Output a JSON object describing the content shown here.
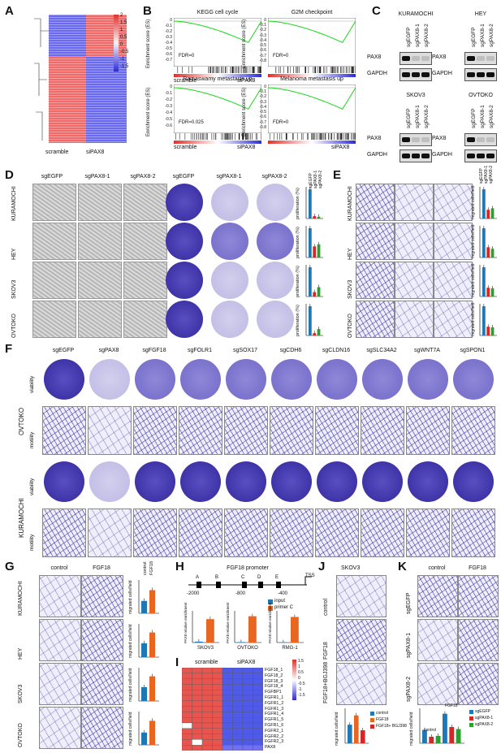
{
  "panels": {
    "A": {
      "label": "A",
      "heatmap_scale": [
        "2",
        "1.5",
        "1",
        "0.5",
        "0",
        "-0.5",
        "-1",
        "-1.5"
      ],
      "groups": [
        "scramble",
        "siPAX8"
      ]
    },
    "B": {
      "label": "B",
      "gsea": [
        {
          "title": "KEGG cell cycle",
          "fdr": "FDR=0",
          "left": "scramble",
          "right": "siPAX8",
          "yticks": [
            "0",
            "-0.1",
            "-0.2",
            "-0.3",
            "-0.4",
            "-0.5",
            "-0.6",
            "-0.7"
          ]
        },
        {
          "title": "G2M checkpoint",
          "fdr": "FDR=0",
          "left": "",
          "right": "",
          "yticks": [
            "0",
            "-0.1",
            "-0.2",
            "-0.3",
            "-0.4",
            "-0.5",
            "-0.6",
            "-0.7",
            "-0.8"
          ]
        },
        {
          "title": "Ramaswamy metastasis up",
          "fdr": "FDR=0.025",
          "left": "scramble",
          "right": "siPAX8",
          "yticks": [
            "0",
            "-0.1",
            "-0.2",
            "-0.3",
            "-0.4",
            "-0.5",
            "-0.6"
          ]
        },
        {
          "title": "Melanoma metastasis up",
          "fdr": "FDR=0",
          "left": "",
          "right": "siPAX8",
          "yticks": [
            "0",
            "-0.1",
            "-0.2",
            "-0.3",
            "-0.4",
            "-0.5",
            "-0.6",
            "-0.7",
            "-0.8"
          ]
        }
      ],
      "ylabel": "Enrichment score (ES)"
    },
    "C": {
      "label": "C",
      "blots": [
        {
          "cell": "KURAMOCHI",
          "lanes": [
            "sgEGFP",
            "sgPAX8-1",
            "sgPAX8-2"
          ],
          "rows": [
            "PAX8",
            "GAPDH"
          ]
        },
        {
          "cell": "HEY",
          "lanes": [
            "sgEGFP",
            "sgPAX8-1",
            "sgPAX8-2"
          ],
          "rows": [
            "PAX8",
            "GAPDH"
          ]
        },
        {
          "cell": "SKOV3",
          "lanes": [
            "sgEGFP",
            "sgPAX8-1",
            "sgPAX8-2"
          ],
          "rows": [
            "PAX8",
            "GAPDH"
          ]
        },
        {
          "cell": "OVTOKO",
          "lanes": [
            "sgEGFP",
            "sgPAX8-1",
            "sgPAX8-2"
          ],
          "rows": [
            "PAX8",
            "GAPDH"
          ]
        }
      ]
    },
    "D": {
      "label": "D",
      "cols": [
        "sgEGFP",
        "sgPAX8-1",
        "sgPAX8-2",
        "sgEGFP",
        "sgPAX8-1",
        "sgPAX8-2"
      ],
      "rows": [
        "KURAMOCHI",
        "HEY",
        "SKOV3",
        "OVTOKO"
      ],
      "legend": [
        "sgEGFP",
        "sgPAX8-1",
        "sgPAX8-2"
      ],
      "ylabel": "proliferation (%)"
    },
    "E": {
      "label": "E",
      "rows": [
        "KURAMOCHI",
        "HEY",
        "SKOV3",
        "OVTOKO"
      ],
      "legend": [
        "sgEGFP",
        "sgPAX8-1",
        "sgPAX8-2"
      ],
      "ylabel": "migrated cells/field"
    },
    "F": {
      "label": "F",
      "cols": [
        "sgEGFP",
        "sgPAX8",
        "sgFGF18",
        "sgFOLR1",
        "sgSOX17",
        "sgCDH6",
        "sgCLDN16",
        "sgSLC34A2",
        "sgWNT7A",
        "sgSPON1"
      ],
      "groups": [
        "OVTOKO",
        "KURAMOCHI"
      ],
      "rowlabels": [
        "viability",
        "motility"
      ]
    },
    "G": {
      "label": "G",
      "cols": [
        "control",
        "FGF18"
      ],
      "rows": [
        "KURAMOCHI",
        "HEY",
        "SKOV3",
        "OVTOKO"
      ],
      "legend": [
        "control",
        "FGF18"
      ],
      "ylabel": "migrated cells/field"
    },
    "H": {
      "label": "H",
      "title": "FGF18 promoter",
      "sites": [
        "A",
        "B",
        "C",
        "D",
        "E"
      ],
      "positions": [
        "-2000",
        "-800",
        "-400"
      ],
      "tss": "TSS",
      "legend": [
        "input",
        "primer C"
      ],
      "charts": [
        "SKOV3",
        "OVTOKO",
        "RMG-1"
      ],
      "ylabel": "PAX8 relative enrichment"
    },
    "I": {
      "label": "I",
      "groups": [
        "scramble",
        "siPAX8"
      ],
      "genes": [
        "FGF18_1",
        "FGF18_2",
        "FGF18_3",
        "FGF18_4",
        "FGFBP1",
        "FGFR1_1",
        "FGFR1_2",
        "FGFR1_3",
        "FGFR1_4",
        "FGFR1_5",
        "FGFR1_6",
        "FGFR2_1",
        "FGFR2_2",
        "FGFR2_3",
        "PAX8"
      ],
      "scale": [
        "1.5",
        "1",
        "0.5",
        "0",
        "-0.5",
        "-1",
        "-1.5"
      ]
    },
    "J": {
      "label": "J",
      "title": "SKOV3",
      "rows": [
        "control",
        "FGF18",
        "FGF18+BGJ398"
      ],
      "legend": [
        "control",
        "FGF18",
        "FGF18+ BGJ398"
      ],
      "ylabel": "migrated cells/field"
    },
    "K": {
      "label": "K",
      "cols": [
        "control",
        "FGF18"
      ],
      "rows": [
        "sgEGFP",
        "sgPAX8-1",
        "sgPAX8-2"
      ],
      "legend": [
        "sgEGFP",
        "sgPAX8-1",
        "sgPAX8-2"
      ],
      "ylabel": "migrated cells/field",
      "xgroups": [
        "control",
        "FGF18"
      ]
    }
  },
  "colors": {
    "red": "#e0312c",
    "blue": "#2b2bd8",
    "bar_blue": "#1f77b4",
    "bar_orange": "#e8661f",
    "bar_red": "#d62728",
    "bar_green": "#2ca02c",
    "gsea_green": "#17d817"
  },
  "chart_data": [
    {
      "type": "bar",
      "panel": "D",
      "series": [
        {
          "name": "sgEGFP"
        },
        {
          "name": "sgPAX8-1"
        },
        {
          "name": "sgPAX8-2"
        }
      ],
      "rows": [
        "KURAMOCHI",
        "HEY",
        "SKOV3",
        "OVTOKO"
      ],
      "values": [
        [
          100,
          8,
          6
        ],
        [
          100,
          38,
          45
        ],
        [
          100,
          15,
          32
        ],
        [
          100,
          8,
          22
        ]
      ]
    },
    {
      "type": "bar",
      "panel": "E",
      "rows": [
        "KURAMOCHI",
        "HEY",
        "SKOV3",
        "OVTOKO"
      ],
      "values": [
        [
          100,
          30,
          35
        ],
        [
          100,
          35,
          30
        ],
        [
          100,
          30,
          28
        ],
        [
          100,
          30,
          28
        ]
      ]
    },
    {
      "type": "bar",
      "panel": "G",
      "rows": [
        "KURAMOCHI",
        "HEY",
        "SKOV3",
        "OVTOKO"
      ],
      "values": [
        [
          40,
          75
        ],
        [
          45,
          80
        ],
        [
          45,
          80
        ],
        [
          40,
          78
        ]
      ]
    },
    {
      "type": "bar",
      "panel": "H",
      "charts": [
        "SKOV3",
        "OVTOKO",
        "RMG-1"
      ],
      "values": [
        [
          0.3,
          8
        ],
        [
          0.3,
          18
        ],
        [
          0.3,
          35
        ]
      ]
    },
    {
      "type": "bar",
      "panel": "J",
      "values": [
        40,
        60,
        28
      ]
    },
    {
      "type": "bar",
      "panel": "K",
      "groups": [
        "control",
        "FGF18"
      ],
      "values": [
        [
          45,
          22,
          25
        ],
        [
          100,
          55,
          48
        ]
      ]
    }
  ]
}
